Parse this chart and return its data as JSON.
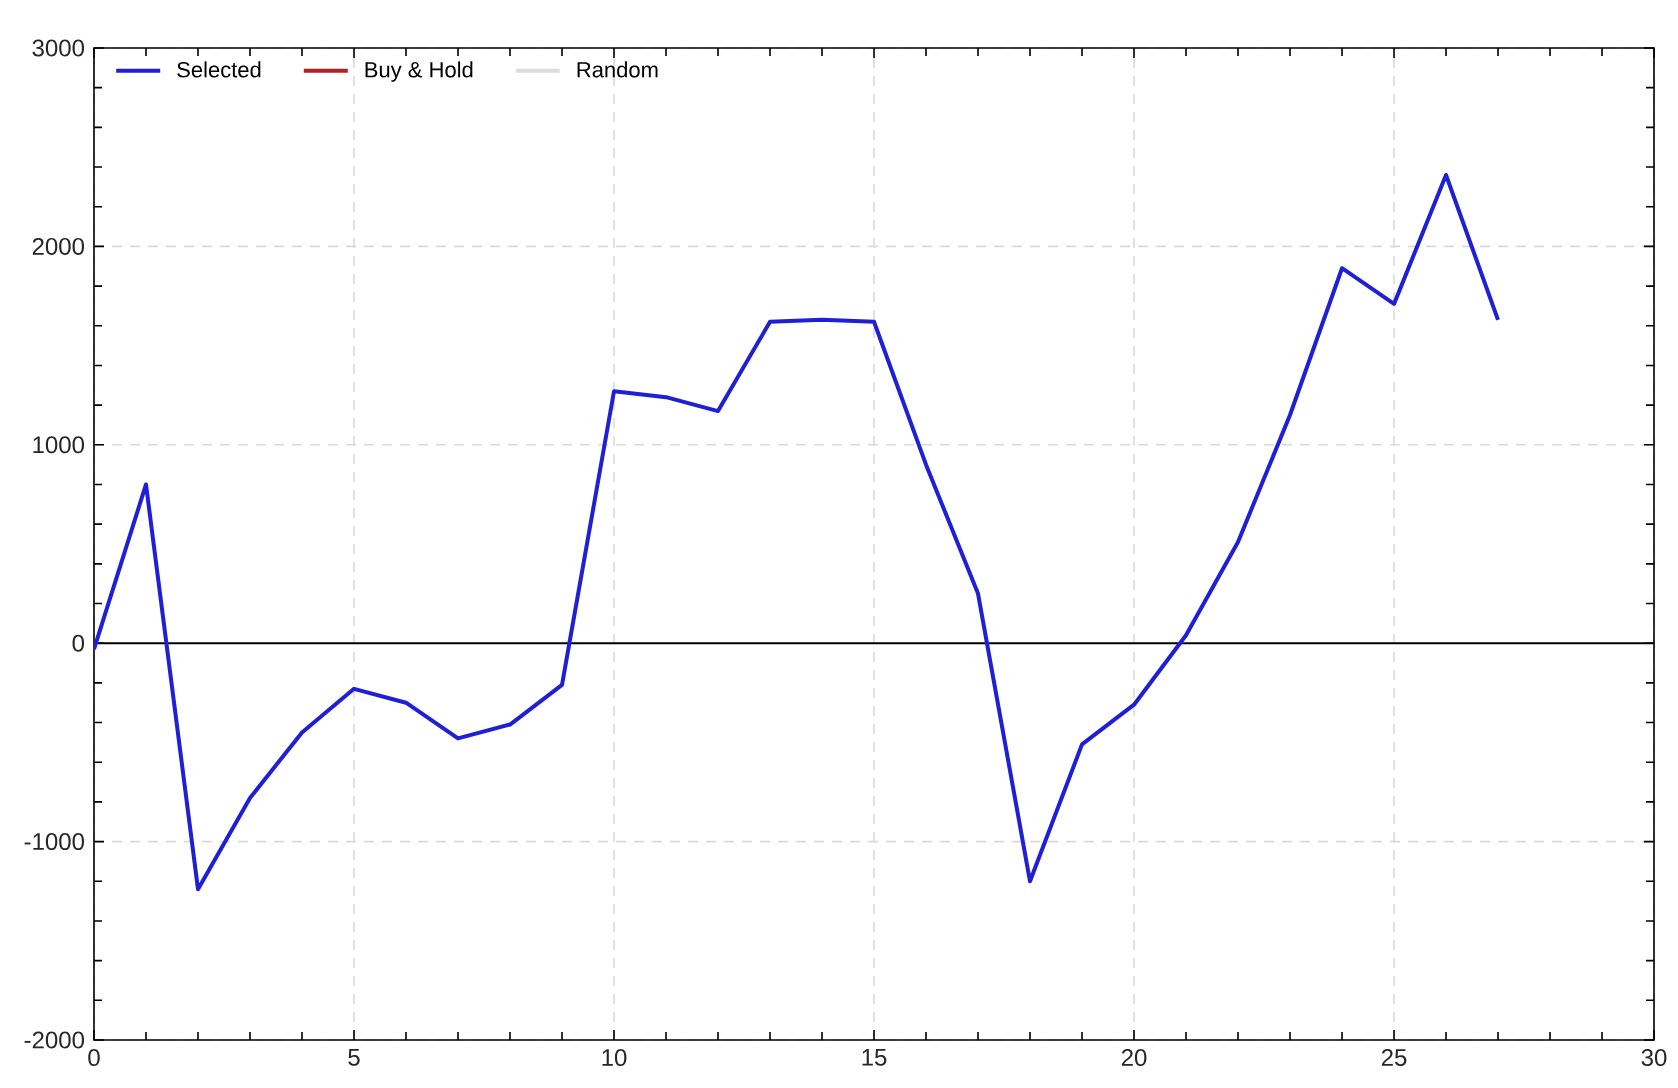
{
  "chart_data": {
    "type": "line",
    "x": [
      0,
      1,
      2,
      3,
      4,
      5,
      6,
      7,
      8,
      9,
      10,
      11,
      12,
      13,
      14,
      15,
      16,
      17,
      18,
      19,
      20,
      21,
      22,
      23,
      24,
      25,
      26,
      27
    ],
    "series": [
      {
        "name": "Selected",
        "color": "#1f1fd6",
        "values": [
          -30,
          800,
          -1240,
          -780,
          -450,
          -230,
          -300,
          -480,
          -410,
          -210,
          1270,
          1240,
          1170,
          1620,
          1630,
          1620,
          900,
          250,
          -1200,
          -510,
          -310,
          40,
          510,
          1150,
          1890,
          1710,
          2360,
          1630
        ]
      },
      {
        "name": "Buy & Hold",
        "color": "#b22222",
        "values": [
          null,
          null,
          null,
          null,
          null,
          null,
          null,
          null,
          null,
          null,
          null,
          null,
          null,
          null,
          null,
          null,
          null,
          null,
          null,
          null,
          null,
          null,
          null,
          null,
          null,
          null,
          null,
          null
        ]
      },
      {
        "name": "Random",
        "color": "#dcdcdc",
        "values": [
          null,
          null,
          null,
          null,
          null,
          null,
          null,
          null,
          null,
          null,
          null,
          null,
          null,
          null,
          null,
          null,
          null,
          null,
          null,
          null,
          null,
          null,
          null,
          null,
          null,
          null,
          null,
          null
        ]
      }
    ],
    "xlim": [
      0,
      30
    ],
    "ylim": [
      -2000,
      3000
    ],
    "xticks": [
      0,
      5,
      10,
      15,
      20,
      25,
      30
    ],
    "yticks": [
      -2000,
      -1000,
      0,
      1000,
      2000,
      3000
    ],
    "grid": true,
    "legend": "top left",
    "marker": "none",
    "line_style": "solid",
    "ref_lines": [
      {
        "axis": "y",
        "value": 0,
        "color": "#000000"
      }
    ]
  }
}
